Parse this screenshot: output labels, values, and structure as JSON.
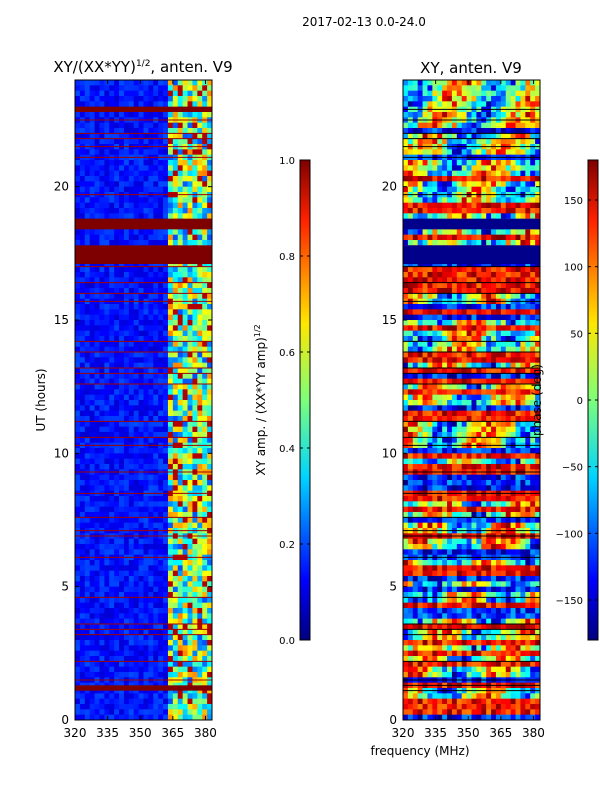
{
  "suptitle": "2017-02-13 0.0-24.0",
  "shared_xlabel": "frequency (MHz)",
  "chart_data": [
    {
      "type": "heatmap",
      "title": "XY/(XX*YY)",
      "title_sup": "1/2",
      "title_suffix": ", anten. V9",
      "xlabel": "",
      "ylabel": "UT (hours)",
      "xlim": [
        320,
        383
      ],
      "ylim": [
        0,
        24
      ],
      "xticks": [
        320,
        335,
        350,
        365,
        380
      ],
      "yticks": [
        0,
        5,
        10,
        15,
        20
      ],
      "colorbar": {
        "label": "XY amp. / (XX*YY amp)",
        "label_sup": "1/2",
        "range": [
          0.0,
          1.0
        ],
        "ticks": [
          "0.0",
          "0.2",
          "0.4",
          "0.6",
          "0.8",
          "1.0"
        ],
        "colormap": "jet"
      },
      "dense_band_mhz": [
        362,
        383
      ],
      "saturated_rows_ut": [
        [
          1.1,
          1.3
        ],
        [
          17.1,
          17.8
        ],
        [
          18.4,
          18.8
        ],
        [
          22.8,
          23.0
        ]
      ],
      "flag_lines_ut": [
        1.5,
        2.2,
        3.2,
        3.4,
        3.6,
        4.6,
        6.1,
        6.9,
        7.1,
        7.6,
        8.5,
        9.3,
        10.3,
        10.6,
        11.2,
        12.6,
        13.0,
        13.2,
        13.8,
        14.2,
        15.7,
        16.0,
        16.4,
        17.0,
        19.7,
        21.1,
        21.5,
        21.8,
        22.0,
        22.5
      ]
    },
    {
      "type": "heatmap",
      "title": "XY, anten. V9",
      "xlabel": "",
      "ylabel": "",
      "xlim": [
        320,
        383
      ],
      "ylim": [
        0,
        24
      ],
      "xticks": [
        320,
        335,
        350,
        365,
        380
      ],
      "yticks": [
        0,
        5,
        10,
        15,
        20
      ],
      "colorbar": {
        "label": "phase (deg)",
        "range": [
          -180,
          180
        ],
        "ticks": [
          "150",
          "100",
          "50",
          "0",
          "−50",
          "−100",
          "−150"
        ],
        "colormap": "jet"
      },
      "blank_rows_ut": [
        [
          17.1,
          17.8
        ],
        [
          18.4,
          18.8
        ]
      ],
      "flag_lines_ut": [
        1.1,
        1.3,
        1.5,
        2.2,
        3.2,
        3.4,
        3.6,
        4.6,
        6.1,
        6.9,
        7.1,
        7.6,
        8.5,
        9.3,
        10.3,
        10.6,
        11.2,
        12.6,
        13.0,
        13.2,
        13.8,
        14.2,
        15.7,
        16.0,
        16.4,
        17.0,
        19.7,
        21.1,
        21.5,
        21.8,
        22.0,
        22.5,
        22.9
      ]
    }
  ]
}
